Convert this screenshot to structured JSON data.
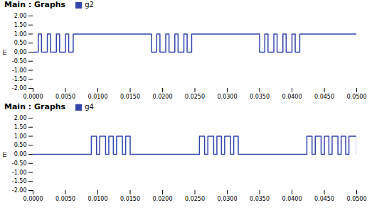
{
  "chart_data": [
    {
      "type": "line",
      "title": "Main : Graphs",
      "ylabel": "m",
      "line_style": "step",
      "x": [
        0.0,
        0.0008,
        0.0013,
        0.0022,
        0.0027,
        0.0036,
        0.0041,
        0.005,
        0.0055,
        0.0062,
        0.0183,
        0.0191,
        0.0196,
        0.0205,
        0.021,
        0.0219,
        0.0224,
        0.0233,
        0.0238,
        0.0245,
        0.035,
        0.0358,
        0.0363,
        0.0372,
        0.0377,
        0.0386,
        0.0391,
        0.04,
        0.0405,
        0.0412,
        0.05
      ],
      "series": [
        {
          "name": "g2",
          "color": "#3344aa",
          "values": [
            0,
            1,
            0,
            1,
            0,
            1,
            0,
            1,
            0,
            1,
            0,
            1,
            0,
            1,
            0,
            1,
            0,
            1,
            0,
            1,
            0,
            1,
            0,
            1,
            0,
            1,
            0,
            1,
            0,
            1,
            1
          ]
        }
      ],
      "xlim": [
        0.0,
        0.05
      ],
      "xticks": [
        {
          "value": 0.0,
          "label": "0.0000"
        },
        {
          "value": 0.005,
          "label": "0.0050"
        },
        {
          "value": 0.01,
          "label": "0.0100"
        },
        {
          "value": 0.015,
          "label": "0.0150"
        },
        {
          "value": 0.02,
          "label": "0.0200"
        },
        {
          "value": 0.025,
          "label": "0.0250"
        },
        {
          "value": 0.03,
          "label": "0.0300"
        },
        {
          "value": 0.035,
          "label": "0.0350"
        },
        {
          "value": 0.04,
          "label": "0.0400"
        },
        {
          "value": 0.045,
          "label": "0.0450"
        },
        {
          "value": 0.05,
          "label": "0.0500"
        }
      ],
      "ylim": [
        -2.0,
        2.0
      ],
      "yticks": [
        {
          "value": -2.0,
          "label": "-2.00"
        },
        {
          "value": -1.5,
          "label": "-1.50"
        },
        {
          "value": -1.0,
          "label": "-1.00"
        },
        {
          "value": -0.5,
          "label": "-0.50"
        },
        {
          "value": 0.0,
          "label": "0.00"
        },
        {
          "value": 0.5,
          "label": "0.50"
        },
        {
          "value": 1.0,
          "label": "1.00"
        },
        {
          "value": 1.5,
          "label": "1.50"
        },
        {
          "value": 2.0,
          "label": "2.00"
        }
      ]
    },
    {
      "type": "line",
      "title": "Main : Graphs",
      "ylabel": "m",
      "line_style": "step",
      "x": [
        0.0,
        0.009,
        0.0098,
        0.0103,
        0.0112,
        0.0117,
        0.0124,
        0.0129,
        0.0138,
        0.0143,
        0.015,
        0.0257,
        0.0265,
        0.027,
        0.0279,
        0.0284,
        0.0291,
        0.0296,
        0.0305,
        0.031,
        0.0317,
        0.0423,
        0.0431,
        0.0436,
        0.0445,
        0.045,
        0.0457,
        0.0462,
        0.0471,
        0.0476,
        0.0483,
        0.0488,
        0.05
      ],
      "series": [
        {
          "name": "g4",
          "color": "#3344aa",
          "values": [
            0,
            1,
            0,
            1,
            0,
            1,
            0,
            1,
            0,
            1,
            0,
            1,
            0,
            1,
            0,
            1,
            0,
            1,
            0,
            1,
            0,
            1,
            0,
            1,
            0,
            1,
            0,
            1,
            0,
            1,
            0,
            1,
            0
          ]
        }
      ],
      "xlim": [
        0.0,
        0.05
      ],
      "xticks": [
        {
          "value": 0.0,
          "label": "0.0000"
        },
        {
          "value": 0.005,
          "label": "0.0050"
        },
        {
          "value": 0.01,
          "label": "0.0100"
        },
        {
          "value": 0.015,
          "label": "0.0150"
        },
        {
          "value": 0.02,
          "label": "0.0200"
        },
        {
          "value": 0.025,
          "label": "0.0250"
        },
        {
          "value": 0.03,
          "label": "0.0300"
        },
        {
          "value": 0.035,
          "label": "0.0350"
        },
        {
          "value": 0.04,
          "label": "0.0400"
        },
        {
          "value": 0.045,
          "label": "0.0450"
        },
        {
          "value": 0.05,
          "label": "0.0500"
        }
      ],
      "ylim": [
        -2.0,
        2.0
      ],
      "yticks": [
        {
          "value": -2.0,
          "label": "-2.00"
        },
        {
          "value": -1.5,
          "label": "-1.50"
        },
        {
          "value": -1.0,
          "label": "-1.00"
        },
        {
          "value": -0.5,
          "label": "-0.50"
        },
        {
          "value": 0.0,
          "label": "0.00"
        },
        {
          "value": 0.5,
          "label": "0.50"
        },
        {
          "value": 1.0,
          "label": "1.00"
        },
        {
          "value": 1.5,
          "label": "1.50"
        },
        {
          "value": 2.0,
          "label": "2.00"
        }
      ]
    }
  ]
}
